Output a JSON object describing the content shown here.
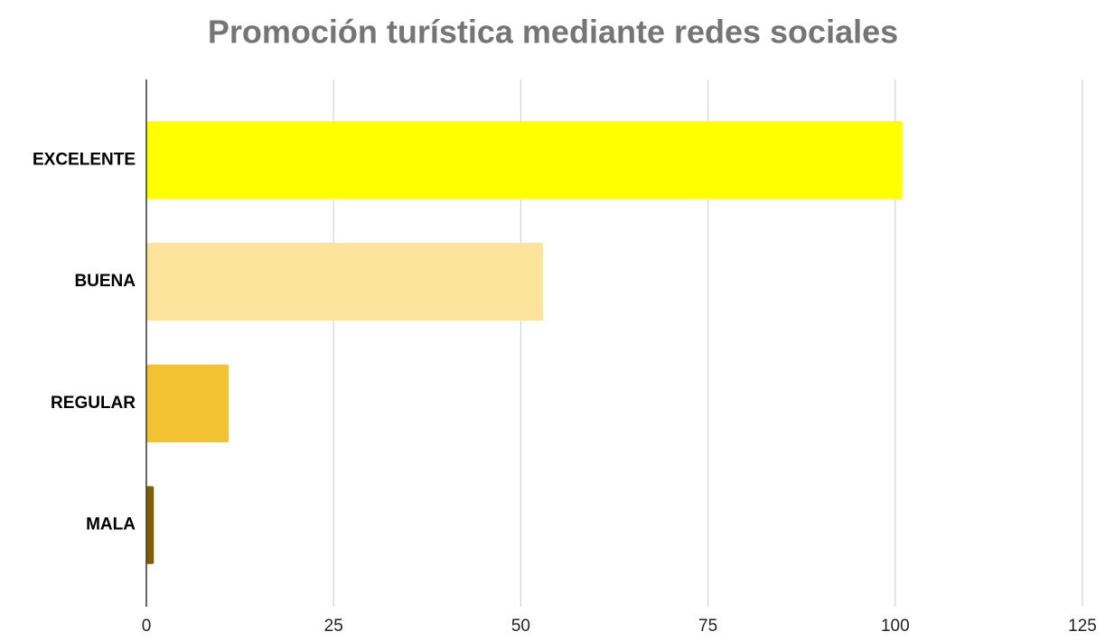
{
  "chart_data": {
    "type": "barh",
    "title": "Promoción turística mediante redes sociales",
    "categories": [
      "EXCELENTE",
      "BUENA",
      "REGULAR",
      "MALA"
    ],
    "values": [
      101,
      53,
      11,
      1
    ],
    "colors": [
      "#ffff00",
      "#fde49c",
      "#f1c232",
      "#7f6000"
    ],
    "xlim": [
      0,
      125
    ],
    "xticks": [
      0,
      25,
      50,
      75,
      100,
      125
    ],
    "grid": true
  }
}
